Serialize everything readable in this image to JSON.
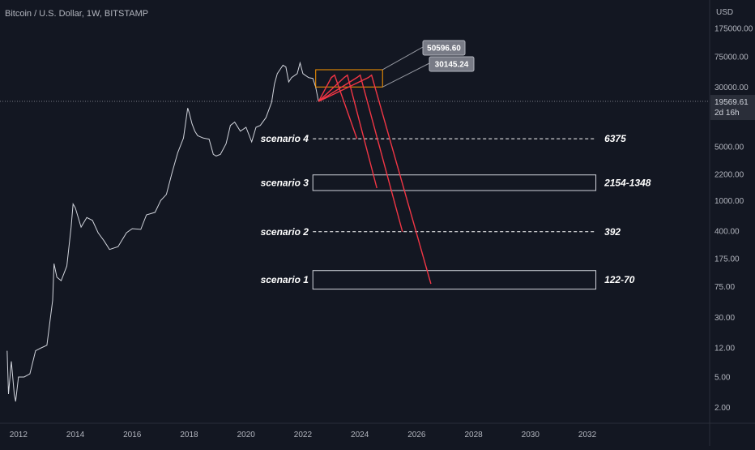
{
  "title": "Bitcoin / U.S. Dollar, 1W, BITSTAMP",
  "chart_data": {
    "type": "line",
    "title": "Bitcoin / U.S. Dollar, 1W, BITSTAMP",
    "xlabel": "",
    "ylabel": "",
    "y_unit": "USD",
    "y_scale": "log",
    "xlim": [
      2011.35,
      2036.3
    ],
    "ylim": [
      1.25,
      410000
    ],
    "x_ticks": [
      "2012",
      "2014",
      "2016",
      "2018",
      "2020",
      "2022",
      "2024",
      "2026",
      "2028",
      "2030",
      "2032"
    ],
    "y_ticks": [
      "175000.00",
      "75000.00",
      "30000.00",
      "5000.00",
      "2200.00",
      "1000.00",
      "400.00",
      "175.00",
      "75.00",
      "30.00",
      "12.00",
      "5.00",
      "2.00"
    ],
    "colors": {
      "background": "#131722",
      "price_line": "#d1d4dc",
      "scenario_paths": "#f23645",
      "target_box": "#ff9800",
      "gridline": "#363a45"
    },
    "price_series": {
      "x": [
        2011.6,
        2011.65,
        2011.75,
        2011.85,
        2011.9,
        2012.0,
        2012.2,
        2012.4,
        2012.6,
        2012.8,
        2013.0,
        2013.2,
        2013.25,
        2013.35,
        2013.5,
        2013.7,
        2013.85,
        2013.92,
        2014.0,
        2014.2,
        2014.4,
        2014.6,
        2014.8,
        2015.0,
        2015.2,
        2015.5,
        2015.8,
        2016.0,
        2016.3,
        2016.5,
        2016.8,
        2017.0,
        2017.2,
        2017.4,
        2017.6,
        2017.8,
        2017.95,
        2018.0,
        2018.1,
        2018.2,
        2018.3,
        2018.5,
        2018.7,
        2018.85,
        2018.95,
        2019.1,
        2019.3,
        2019.45,
        2019.6,
        2019.8,
        2020.0,
        2020.2,
        2020.35,
        2020.5,
        2020.7,
        2020.9,
        2021.0,
        2021.1,
        2021.3,
        2021.4,
        2021.5,
        2021.6,
        2021.8,
        2021.9,
        2022.0,
        2022.2,
        2022.35,
        2022.45,
        2022.55
      ],
      "y": [
        11,
        3.0,
        8,
        3,
        2.4,
        5,
        5,
        5.5,
        11,
        12,
        13,
        50,
        150,
        100,
        90,
        140,
        450,
        900,
        800,
        450,
        600,
        550,
        380,
        300,
        230,
        250,
        380,
        430,
        420,
        650,
        700,
        1000,
        1200,
        2300,
        4200,
        6500,
        16000,
        14000,
        10000,
        8000,
        7000,
        6500,
        6300,
        4000,
        3800,
        4000,
        5500,
        9500,
        10500,
        8000,
        9000,
        5800,
        9000,
        9500,
        12000,
        19000,
        33000,
        45000,
        58000,
        55000,
        35000,
        40000,
        45000,
        62000,
        45000,
        40000,
        39000,
        30000,
        19500
      ]
    },
    "annotations": [
      {
        "text": "50596.60",
        "y": 50596.6
      },
      {
        "text": "30145.24",
        "y": 30145.24
      },
      {
        "text": "19569.61",
        "y": 19569.61,
        "sub": "2d 16h"
      }
    ],
    "scenarios": [
      {
        "name": "scenario 4",
        "label": "6375",
        "kind": "line",
        "y": 6375,
        "path_end_y": 6375
      },
      {
        "name": "scenario 3",
        "label": "2154-1348",
        "kind": "box",
        "y_high": 2154,
        "y_low": 1348,
        "path_end_y": 1450
      },
      {
        "name": "scenario 2",
        "label": "392",
        "kind": "line",
        "y": 392,
        "path_end_y": 392
      },
      {
        "name": "scenario 1",
        "label": "122-70",
        "kind": "box",
        "y_high": 122,
        "y_low": 70,
        "path_end_y": 82
      }
    ],
    "target_zone": {
      "y_high": 50596.6,
      "y_low": 30145.24,
      "x_start": 2022.45,
      "x_end": 2024.8
    }
  }
}
